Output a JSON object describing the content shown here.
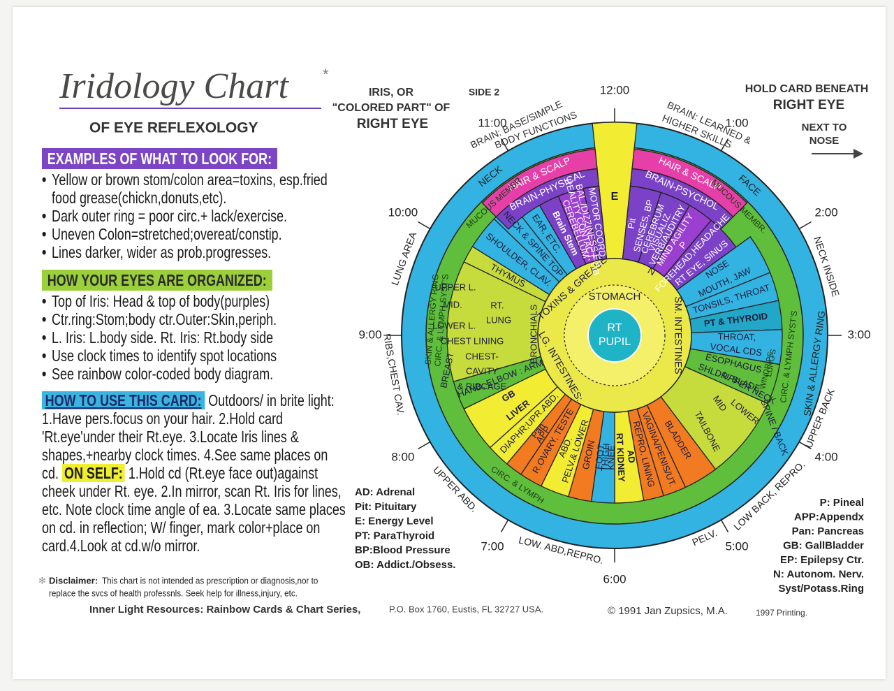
{
  "title": "Iridology Chart",
  "title_mark": "*",
  "subtitle": "OF EYE REFLEXOLOGY",
  "look_for": {
    "heading": "EXAMPLES OF WHAT TO LOOK FOR:",
    "bullets": [
      "Yellow or brown stom/colon area=toxins, esp.fried food grease(chickn,donuts,etc).",
      "Dark outer ring = poor circ.+ lack/exercise.",
      "Uneven Colon=stretched;overeat/constip.",
      "Lines darker, wider as prob.progresses."
    ]
  },
  "organized": {
    "heading": "HOW YOUR EYES ARE ORGANIZED:",
    "bullets": [
      "Top of Iris: Head & top of body(purples)",
      "Ctr.ring:Stom;body ctr.Outer:Skin,periph.",
      "L. Iris: L.body side. Rt. Iris: Rt.body side",
      "Use clock times to identify spot locations",
      "See rainbow color-coded body diagram."
    ]
  },
  "how_to_use": {
    "heading": "HOW TO USE THIS CARD:",
    "text_1": "Outdoors/ in brite light: 1.Have pers.focus on your hair. 2.Hold card 'Rt.eye'under their Rt.eye. 3.Locate Iris lines & shapes,+nearby clock times. 4.See same places on cd.",
    "on_self": "ON SELF:",
    "text_2": "1.Hold cd (Rt.eye face out)against cheek under Rt. eye. 2.In mirror, scan Rt. Iris for lines, etc. Note clock time angle of ea. 3.Locate same places on cd. in reflection; W/ finger, mark color+place on card.4.Look at cd.w/o mirror."
  },
  "header": {
    "iris_label": [
      "IRIS, OR",
      "\"COLORED PART\" OF",
      "RIGHT EYE"
    ],
    "side": "SIDE 2",
    "hold": [
      "HOLD CARD BENEATH",
      "RIGHT EYE"
    ],
    "next_to": [
      "NEXT TO",
      "NOSE"
    ]
  },
  "clock": [
    "12:00",
    "1:00",
    "2:00",
    "3:00",
    "4:00",
    "5:00",
    "6:00",
    "7:00",
    "8:00",
    "9:00",
    "10:00",
    "11:00"
  ],
  "wheel": {
    "pupil": [
      "RT",
      "PUPIL"
    ],
    "inner_ring": [
      "STOMACH",
      "TOXINS & GREASE",
      "LG. INTESTINES:",
      "SM. INTESTINES",
      "N"
    ],
    "top_bands": [
      "BRAIN-PHYSICAL",
      "BRAIN-PSYCHOL",
      "HAIR & SCALP",
      "HAIR & SCALP"
    ],
    "top_outer": [
      "BRAIN: BASE/SIMPLE",
      "BODY FUNCTIONS",
      "BRAIN: LEARNED &",
      "HIGHER SKILLS"
    ],
    "green_ring": [
      "MUCOUS MEMBR.",
      "MUCOUS MEMBR.",
      "SKIN & ALLERGY RING",
      "CIRC. & LYMPH SYST'S",
      "CIRC. & LYMPH SYST'S",
      "CIRC. & LYMPH",
      "LUNG'S",
      "WINDPIPE"
    ],
    "outer_ring": [
      "NECK",
      "FACE",
      "NECK INSIDE",
      "SKIN & ALLERGY RING",
      "UPPER BACK",
      "LOW BACK, REPRO.",
      "PELV.",
      "LOW. ABD,REPRO.",
      "UPPER ABD.",
      "RIBS,CHEST CAV.",
      "LUNG AREA"
    ],
    "sectors": [
      [
        "E"
      ],
      [
        "Pit",
        "SENSES, BP"
      ],
      [
        "CEREBRUM",
        "VISUALIZ.",
        "VERB/AUDITRY"
      ],
      [
        "MIND AGILITY",
        "P"
      ],
      [
        "FOREHEAD,HEADACHE",
        "RT EYE, SINUS"
      ],
      [
        "NOSE",
        "MOUTH, JAW"
      ],
      [
        "TONSILS, THROAT"
      ],
      [
        "PT & THYROID"
      ],
      [
        "THROAT,",
        "VOCAL CDS"
      ],
      [
        "ESOPHAGUS",
        "SHLDR. BLADE"
      ],
      [
        "UPPER NECK",
        "MID",
        "LOWER",
        "TAILBONE",
        "SPINE / BACK"
      ],
      [
        "BLADDER"
      ],
      [
        "VAGINA/PENIS/UT."
      ],
      [
        "REPRO. LINING"
      ],
      [
        "AD",
        "RT KIDNEY"
      ],
      [
        "KNEE",
        "THIGH",
        "FOOT"
      ],
      [
        "GROIN"
      ],
      [
        "PELV.& LOWER",
        "ABD."
      ],
      [
        "R.OVARY, TESTE"
      ],
      [
        "APP",
        "Pan"
      ],
      [
        "DIAPHR;UPR.ABD."
      ],
      [
        "LIVER",
        "GB"
      ],
      [
        "HAND, ELBOW : ARM"
      ],
      [
        "UPPER L.",
        "MID.",
        "RT.",
        "LUNG",
        "LOWER L.",
        "CHEST LINING",
        "CHEST-",
        "CAVITY",
        "& RIBCAGE",
        "BREAST",
        "BRONCHIALS"
      ],
      [
        "THYMUS"
      ],
      [
        "SHOULDER, CLAV."
      ],
      [
        "NECK & SPINE TOP"
      ],
      [
        "EAR, ETC."
      ],
      [
        "Brain Stem"
      ],
      [
        "CEREBELLUM",
        "REALITY CONTACT, OB",
        "BAL./DIZZINESS EP"
      ],
      [
        "MOTOR COORD."
      ]
    ]
  },
  "legend_left": [
    "AD: Adrenal",
    "Pit: Pituitary",
    "E: Energy Level",
    "PT:  ParaThyroid",
    "BP:Blood Pressure",
    "OB: Addict./Obsess."
  ],
  "legend_right": [
    "P: Pineal",
    "APP:Appendx",
    "Pan: Pancreas",
    "GB: GallBladder",
    "EP: Epilepsy Ctr.",
    "N: Autonom. Nerv.",
    "Syst/Potass.Ring"
  ],
  "disclaimer": {
    "label": "Disclaimer:",
    "lines": [
      "This chart is not intended as prescription or diagnosis,nor to",
      "replace the svcs of health professnls. Seek help for illness,injury, etc."
    ]
  },
  "footer": {
    "publisher": "Inner Light Resources: Rainbow Cards & Chart Series,",
    "address": "P.O. Box 1760, Eustis, FL 32727 USA.",
    "copyright": "© 1991 Jan Zupsics, M.A.",
    "printing": "1997 Printing."
  }
}
